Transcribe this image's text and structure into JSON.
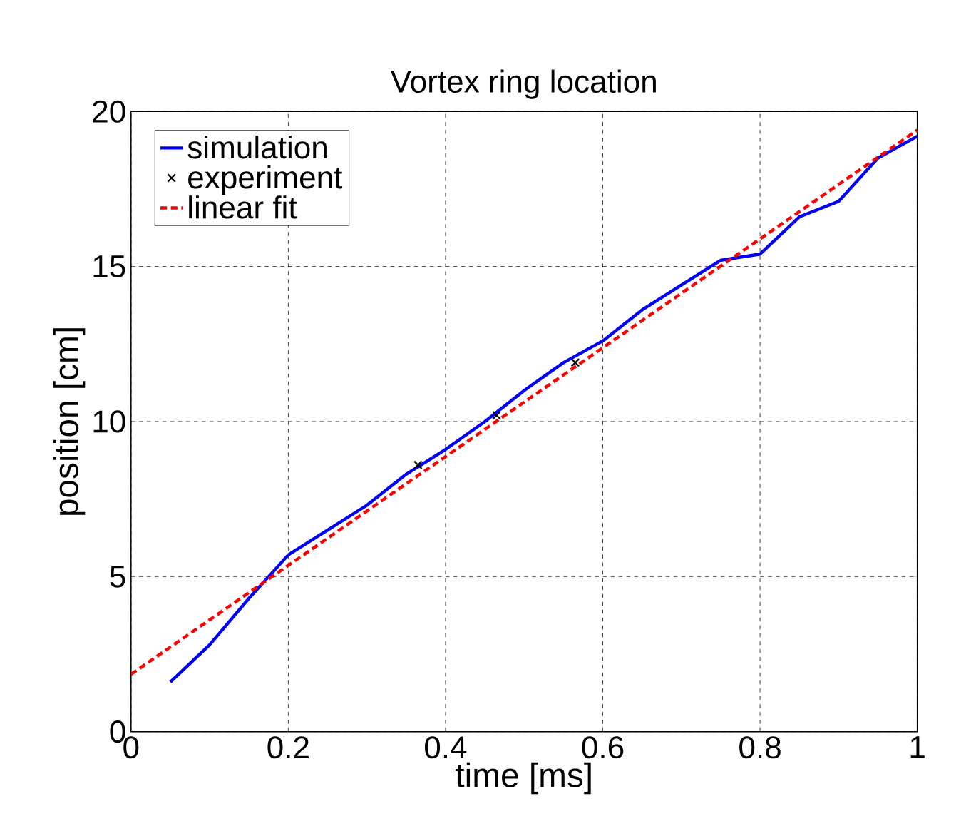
{
  "chart_data": {
    "type": "line",
    "title": "Vortex ring location",
    "xlabel": "time [ms]",
    "ylabel": "position [cm]",
    "xlim": [
      0,
      1
    ],
    "ylim": [
      0,
      20
    ],
    "xticks": [
      0,
      0.2,
      0.4,
      0.6,
      0.8,
      1
    ],
    "yticks": [
      0,
      5,
      10,
      15,
      20
    ],
    "grid": true,
    "legend": "top left",
    "series": [
      {
        "name": "simulation",
        "color": "#0000ff",
        "marker": "none",
        "line_style": "solid",
        "x": [
          0.05,
          0.1,
          0.15,
          0.2,
          0.25,
          0.3,
          0.35,
          0.4,
          0.45,
          0.5,
          0.55,
          0.6,
          0.65,
          0.7,
          0.75,
          0.8,
          0.85,
          0.9,
          0.95,
          1.0
        ],
        "values": [
          1.6,
          2.8,
          4.3,
          5.7,
          6.5,
          7.3,
          8.3,
          9.1,
          10.0,
          11.0,
          11.9,
          12.6,
          13.6,
          14.4,
          15.2,
          15.4,
          16.6,
          17.1,
          18.5,
          19.2
        ]
      },
      {
        "name": "experiment",
        "type": "scatter",
        "color": "#000000",
        "marker": "cross",
        "x": [
          0.365,
          0.465,
          0.565
        ],
        "values": [
          8.6,
          10.2,
          11.9
        ]
      },
      {
        "name": "linear fit",
        "color": "#ff0000",
        "marker": "none",
        "line_style": "dashed",
        "x": [
          0,
          1
        ],
        "values": [
          1.85,
          19.4
        ]
      }
    ]
  }
}
